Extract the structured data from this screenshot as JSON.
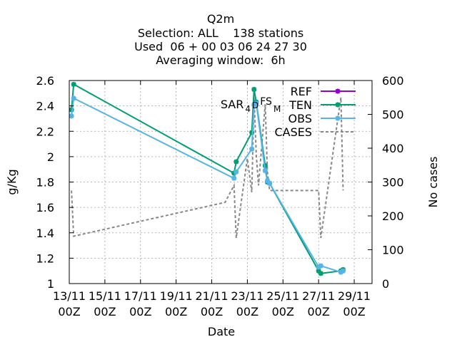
{
  "chart_data": {
    "type": "line",
    "title": [
      "Q2m",
      "Selection: ALL    138 stations",
      "Used  06 + 00 03 06 24 27 30",
      "Averaging window:  6h"
    ],
    "xlabel": "Date",
    "ylabel": "g/Kg",
    "y2label": "No cases",
    "xlim": [
      0,
      17
    ],
    "ylim": [
      1,
      2.6
    ],
    "y2lim": [
      0,
      600
    ],
    "x_ticks": [
      {
        "x": 0,
        "label": [
          "13/11",
          "00Z"
        ]
      },
      {
        "x": 2,
        "label": [
          "15/11",
          "00Z"
        ]
      },
      {
        "x": 4,
        "label": [
          "17/11",
          "00Z"
        ]
      },
      {
        "x": 6,
        "label": [
          "19/11",
          "00Z"
        ]
      },
      {
        "x": 8,
        "label": [
          "21/11",
          "00Z"
        ]
      },
      {
        "x": 10,
        "label": [
          "23/11",
          "00Z"
        ]
      },
      {
        "x": 12,
        "label": [
          "25/11",
          "00Z"
        ]
      },
      {
        "x": 14,
        "label": [
          "27/11",
          "00Z"
        ]
      },
      {
        "x": 16,
        "label": [
          "29/11",
          "00Z"
        ]
      }
    ],
    "y_ticks": [
      1,
      1.2,
      1.4,
      1.6,
      1.8,
      2,
      2.2,
      2.4,
      2.6
    ],
    "y_tick_labels": [
      "1",
      "1.2",
      "1.4",
      "1.6",
      "1.8",
      "2",
      "2.2",
      "2.4",
      "2.6"
    ],
    "y2_ticks": [
      0,
      100,
      200,
      300,
      400,
      500,
      600
    ],
    "grid": true,
    "legend_position": "top-right",
    "annotation": {
      "text": "SAR",
      "sub1": "4",
      "mid": "D",
      "sup": "FS",
      "sub2": "M",
      "x": 10.9,
      "y": 2.44
    },
    "series": [
      {
        "name": "REF",
        "color": "#9400d3",
        "axis": "y",
        "marker": "star",
        "x": [],
        "y": []
      },
      {
        "name": "TEN",
        "color": "#009e73",
        "axis": "y",
        "marker": "star",
        "x": [
          0.125,
          0.25,
          9.25,
          9.375,
          10.25,
          10.375,
          10.5,
          11.0,
          11.125,
          11.25,
          14.0,
          14.125,
          15.25,
          15.375
        ],
        "y": [
          2.37,
          2.57,
          1.87,
          1.96,
          2.19,
          2.53,
          2.43,
          1.93,
          1.8,
          1.79,
          1.1,
          1.08,
          1.1,
          1.11
        ]
      },
      {
        "name": "OBS",
        "color": "#56b4e9",
        "axis": "y",
        "marker": "star",
        "x": [
          0.125,
          0.25,
          9.25,
          9.375,
          10.25,
          10.375,
          10.5,
          11.0,
          11.125,
          11.25,
          14.0,
          14.125,
          15.25,
          15.375
        ],
        "y": [
          2.32,
          2.46,
          1.83,
          1.88,
          2.06,
          2.41,
          2.42,
          1.89,
          1.81,
          1.79,
          1.13,
          1.14,
          1.09,
          1.1
        ]
      },
      {
        "name": "CASES",
        "color": "#888888",
        "axis": "y2",
        "style": "dashed",
        "x": [
          0.125,
          0.25,
          8.75,
          9.25,
          9.375,
          10.0,
          10.25,
          10.375,
          10.5,
          10.625,
          11.0,
          11.125,
          11.25,
          14.0,
          14.125,
          15.25,
          15.375
        ],
        "y": [
          275,
          140,
          240,
          290,
          135,
          370,
          270,
          550,
          380,
          290,
          530,
          330,
          275,
          275,
          135,
          550,
          275
        ]
      }
    ]
  }
}
